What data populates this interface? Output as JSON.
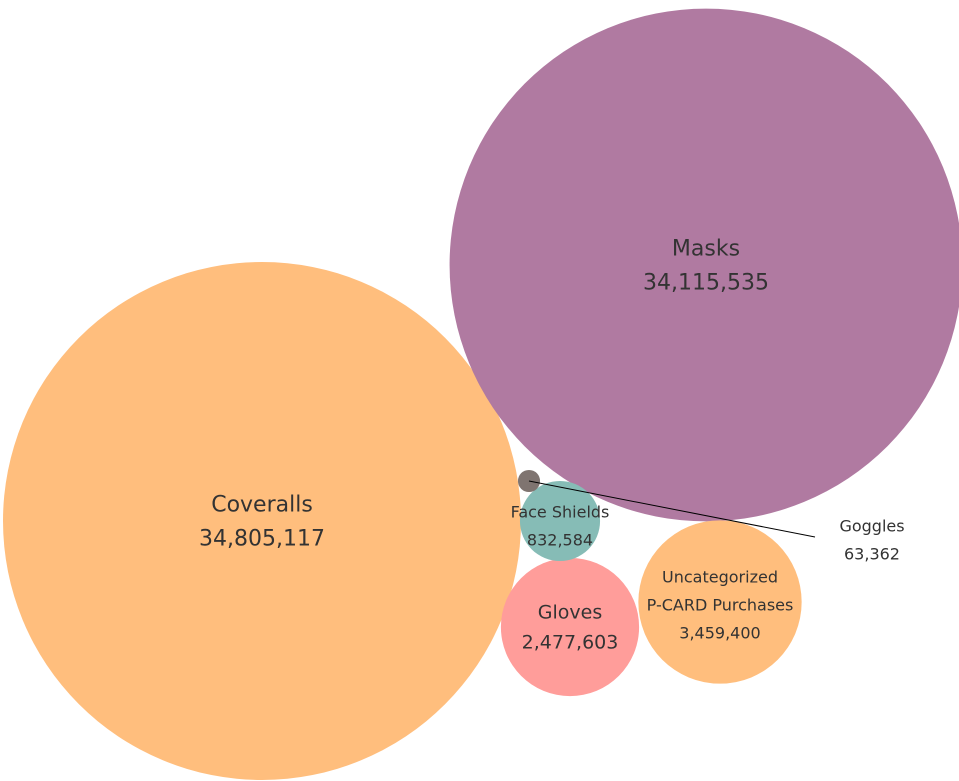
{
  "chart_data": {
    "type": "packed-bubble",
    "title": "",
    "series": [
      {
        "name": "Coveralls",
        "label_lines": [
          "Coveralls"
        ],
        "value": 34805117,
        "value_label": "34,805,117",
        "color": "#FFBE7D"
      },
      {
        "name": "Masks",
        "label_lines": [
          "Masks"
        ],
        "value": 34115535,
        "value_label": "34,115,535",
        "color": "#B07AA1"
      },
      {
        "name": "Uncategorized P-CARD Purchases",
        "label_lines": [
          "Uncategorized",
          "P-CARD Purchases"
        ],
        "value": 3459400,
        "value_label": "3,459,400",
        "color": "#FFBE7D"
      },
      {
        "name": "Gloves",
        "label_lines": [
          "Gloves"
        ],
        "value": 2477603,
        "value_label": "2,477,603",
        "color": "#FF9D9A"
      },
      {
        "name": "Face Shields",
        "label_lines": [
          "Face Shields"
        ],
        "value": 832584,
        "value_label": "832,584",
        "color": "#86BCB6"
      },
      {
        "name": "Goggles",
        "label_lines": [
          "Goggles"
        ],
        "value": 63362,
        "value_label": "63,362",
        "color": "#7F7470"
      }
    ]
  }
}
